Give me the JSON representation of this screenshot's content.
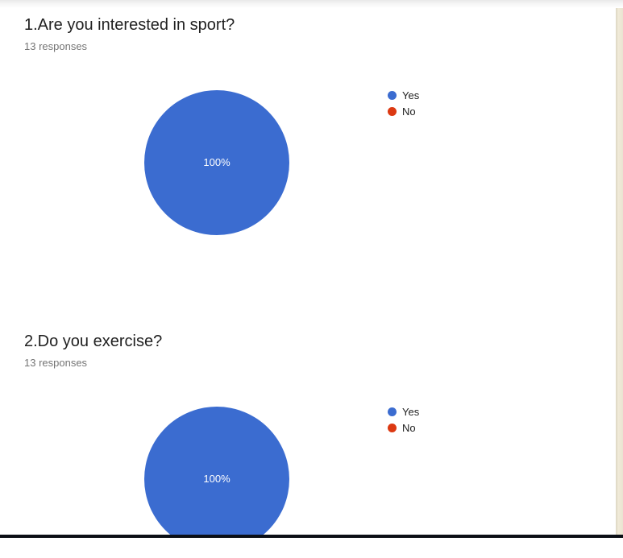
{
  "chart_data": [
    {
      "type": "pie",
      "title": "1.Are you interested in sport?",
      "responses_text": "13 responses",
      "labels": [
        "Yes",
        "No"
      ],
      "values": [
        100,
        0
      ],
      "unit": "percent",
      "colors": [
        "#3b6cd0",
        "#dc3912"
      ],
      "slice_label": "100%",
      "legend_position": "right"
    },
    {
      "type": "pie",
      "title": "2.Do you exercise?",
      "responses_text": "13 responses",
      "labels": [
        "Yes",
        "No"
      ],
      "values": [
        100,
        0
      ],
      "unit": "percent",
      "colors": [
        "#3b6cd0",
        "#dc3912"
      ],
      "slice_label": "100%",
      "legend_position": "right"
    }
  ]
}
